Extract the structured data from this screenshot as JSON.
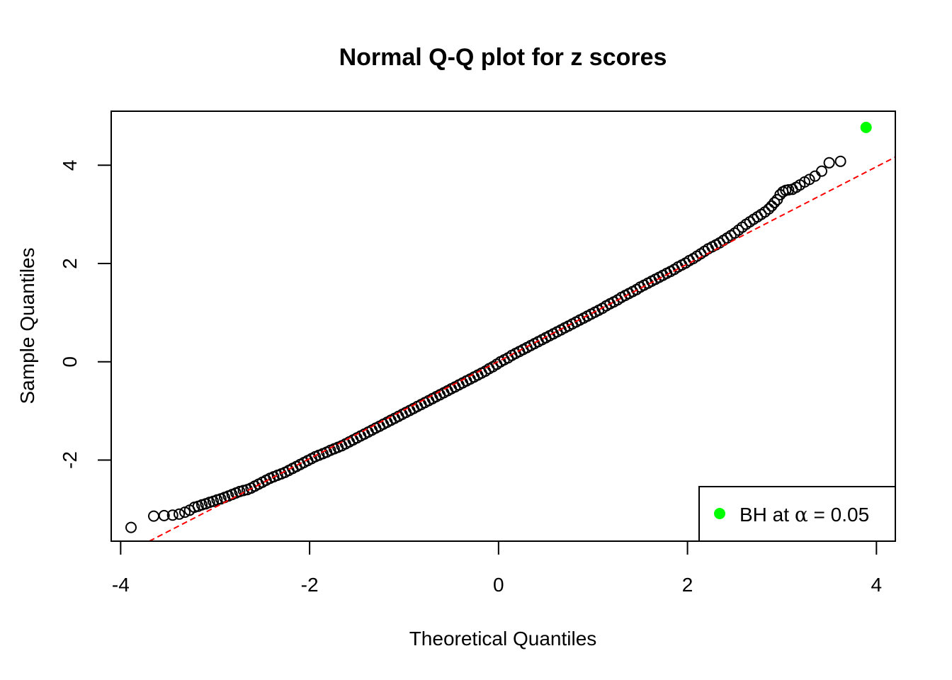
{
  "chart_data": {
    "type": "scatter",
    "title": "Normal Q-Q plot for z scores",
    "xlabel": "Theoretical Quantiles",
    "ylabel": "Sample Quantiles",
    "xlim": [
      -4.1,
      4.2
    ],
    "ylim": [
      -3.65,
      5.1
    ],
    "x_ticks": [
      -4,
      -2,
      0,
      2,
      4
    ],
    "x_tick_labels": [
      "-4",
      "-2",
      "0",
      "2",
      "4"
    ],
    "y_ticks": [
      -2,
      0,
      2,
      4
    ],
    "y_tick_labels": [
      "-2",
      "0",
      "2",
      "4"
    ],
    "grid": false,
    "reference_line": {
      "intercept": 0.01,
      "slope": 0.99,
      "color": "#ff0000",
      "style": "dashed"
    },
    "series": [
      {
        "marker": "open-circle",
        "color": "#000000",
        "points": [
          [
            -3.89,
            -3.37
          ],
          [
            -3.65,
            -3.14
          ],
          [
            -3.54,
            -3.13
          ],
          [
            -3.45,
            -3.12
          ],
          [
            -3.38,
            -3.1
          ],
          [
            -3.32,
            -3.06
          ],
          [
            -3.27,
            -3.02
          ],
          [
            -3.22,
            -2.96
          ],
          [
            -3.18,
            -2.94
          ],
          [
            -3.14,
            -2.91
          ],
          [
            -3.1,
            -2.89
          ],
          [
            -3.06,
            -2.86
          ],
          [
            -3.02,
            -2.84
          ],
          [
            -2.98,
            -2.81
          ],
          [
            -2.94,
            -2.79
          ],
          [
            -2.9,
            -2.76
          ],
          [
            -2.86,
            -2.73
          ],
          [
            -2.82,
            -2.7
          ],
          [
            -2.78,
            -2.67
          ],
          [
            -2.74,
            -2.64
          ],
          [
            -2.7,
            -2.62
          ],
          [
            -2.66,
            -2.6
          ],
          [
            -2.62,
            -2.57
          ],
          [
            -2.58,
            -2.53
          ],
          [
            -2.54,
            -2.49
          ],
          [
            -2.5,
            -2.45
          ],
          [
            -2.46,
            -2.41
          ],
          [
            -2.42,
            -2.37
          ],
          [
            -2.38,
            -2.34
          ],
          [
            -2.34,
            -2.31
          ],
          [
            -2.3,
            -2.28
          ],
          [
            -2.26,
            -2.25
          ],
          [
            -2.22,
            -2.21
          ],
          [
            -2.18,
            -2.17
          ],
          [
            -2.14,
            -2.13
          ],
          [
            -2.1,
            -2.09
          ],
          [
            -2.06,
            -2.05
          ],
          [
            -2.02,
            -2.01
          ],
          [
            -1.98,
            -1.97
          ],
          [
            -1.94,
            -1.93
          ],
          [
            -1.9,
            -1.9
          ],
          [
            -1.86,
            -1.87
          ],
          [
            -1.82,
            -1.84
          ],
          [
            -1.78,
            -1.8
          ],
          [
            -1.74,
            -1.77
          ],
          [
            -1.7,
            -1.74
          ],
          [
            -1.66,
            -1.71
          ],
          [
            -1.62,
            -1.67
          ],
          [
            -1.58,
            -1.63
          ],
          [
            -1.54,
            -1.59
          ],
          [
            -1.5,
            -1.55
          ],
          [
            -1.46,
            -1.51
          ],
          [
            -1.42,
            -1.47
          ],
          [
            -1.38,
            -1.43
          ],
          [
            -1.34,
            -1.39
          ],
          [
            -1.3,
            -1.35
          ],
          [
            -1.26,
            -1.31
          ],
          [
            -1.22,
            -1.27
          ],
          [
            -1.18,
            -1.23
          ],
          [
            -1.14,
            -1.19
          ],
          [
            -1.1,
            -1.15
          ],
          [
            -1.06,
            -1.11
          ],
          [
            -1.02,
            -1.07
          ],
          [
            -0.98,
            -1.03
          ],
          [
            -0.94,
            -0.99
          ],
          [
            -0.9,
            -0.95
          ],
          [
            -0.86,
            -0.91
          ],
          [
            -0.82,
            -0.87
          ],
          [
            -0.78,
            -0.83
          ],
          [
            -0.74,
            -0.79
          ],
          [
            -0.7,
            -0.75
          ],
          [
            -0.66,
            -0.71
          ],
          [
            -0.62,
            -0.67
          ],
          [
            -0.58,
            -0.63
          ],
          [
            -0.54,
            -0.59
          ],
          [
            -0.5,
            -0.55
          ],
          [
            -0.46,
            -0.51
          ],
          [
            -0.42,
            -0.47
          ],
          [
            -0.38,
            -0.43
          ],
          [
            -0.34,
            -0.39
          ],
          [
            -0.3,
            -0.35
          ],
          [
            -0.26,
            -0.31
          ],
          [
            -0.22,
            -0.27
          ],
          [
            -0.18,
            -0.23
          ],
          [
            -0.14,
            -0.19
          ],
          [
            -0.1,
            -0.14
          ],
          [
            -0.06,
            -0.1
          ],
          [
            -0.02,
            -0.05
          ],
          [
            0.02,
            0.0
          ],
          [
            0.06,
            0.04
          ],
          [
            0.1,
            0.08
          ],
          [
            0.14,
            0.13
          ],
          [
            0.18,
            0.17
          ],
          [
            0.22,
            0.21
          ],
          [
            0.26,
            0.25
          ],
          [
            0.3,
            0.29
          ],
          [
            0.34,
            0.33
          ],
          [
            0.38,
            0.37
          ],
          [
            0.42,
            0.41
          ],
          [
            0.46,
            0.45
          ],
          [
            0.5,
            0.49
          ],
          [
            0.54,
            0.53
          ],
          [
            0.58,
            0.57
          ],
          [
            0.62,
            0.61
          ],
          [
            0.66,
            0.65
          ],
          [
            0.7,
            0.69
          ],
          [
            0.74,
            0.73
          ],
          [
            0.78,
            0.77
          ],
          [
            0.82,
            0.81
          ],
          [
            0.86,
            0.85
          ],
          [
            0.9,
            0.89
          ],
          [
            0.94,
            0.93
          ],
          [
            0.98,
            0.97
          ],
          [
            1.02,
            1.01
          ],
          [
            1.06,
            1.05
          ],
          [
            1.1,
            1.09
          ],
          [
            1.14,
            1.14
          ],
          [
            1.18,
            1.18
          ],
          [
            1.22,
            1.22
          ],
          [
            1.26,
            1.26
          ],
          [
            1.3,
            1.31
          ],
          [
            1.34,
            1.35
          ],
          [
            1.38,
            1.39
          ],
          [
            1.42,
            1.43
          ],
          [
            1.46,
            1.47
          ],
          [
            1.5,
            1.52
          ],
          [
            1.54,
            1.56
          ],
          [
            1.58,
            1.6
          ],
          [
            1.62,
            1.64
          ],
          [
            1.66,
            1.68
          ],
          [
            1.7,
            1.72
          ],
          [
            1.74,
            1.76
          ],
          [
            1.78,
            1.8
          ],
          [
            1.82,
            1.84
          ],
          [
            1.86,
            1.88
          ],
          [
            1.9,
            1.93
          ],
          [
            1.94,
            1.97
          ],
          [
            1.98,
            2.01
          ],
          [
            2.02,
            2.06
          ],
          [
            2.06,
            2.1
          ],
          [
            2.1,
            2.15
          ],
          [
            2.14,
            2.2
          ],
          [
            2.18,
            2.25
          ],
          [
            2.22,
            2.3
          ],
          [
            2.26,
            2.34
          ],
          [
            2.3,
            2.38
          ],
          [
            2.34,
            2.42
          ],
          [
            2.38,
            2.47
          ],
          [
            2.42,
            2.52
          ],
          [
            2.46,
            2.57
          ],
          [
            2.5,
            2.62
          ],
          [
            2.54,
            2.68
          ],
          [
            2.58,
            2.74
          ],
          [
            2.62,
            2.8
          ],
          [
            2.66,
            2.85
          ],
          [
            2.7,
            2.9
          ],
          [
            2.74,
            2.95
          ],
          [
            2.78,
            3.0
          ],
          [
            2.82,
            3.05
          ],
          [
            2.86,
            3.11
          ],
          [
            2.89,
            3.17
          ],
          [
            2.92,
            3.24
          ],
          [
            2.95,
            3.3
          ],
          [
            2.98,
            3.4
          ],
          [
            3.01,
            3.46
          ],
          [
            3.04,
            3.49
          ],
          [
            3.07,
            3.5
          ],
          [
            3.11,
            3.51
          ],
          [
            3.15,
            3.55
          ],
          [
            3.19,
            3.6
          ],
          [
            3.24,
            3.66
          ],
          [
            3.29,
            3.71
          ],
          [
            3.35,
            3.78
          ],
          [
            3.42,
            3.88
          ],
          [
            3.5,
            4.05
          ],
          [
            3.62,
            4.08
          ]
        ]
      },
      {
        "name": "BH at α = 0.05",
        "marker": "filled-circle",
        "color": "#00ff00",
        "points": [
          [
            3.89,
            4.77
          ]
        ]
      }
    ],
    "legend": {
      "placement": "bottom-right",
      "label_prefix": "BH at ",
      "label_alpha": "α",
      "label_suffix": " = 0.05",
      "marker_color": "#00ff00"
    }
  }
}
